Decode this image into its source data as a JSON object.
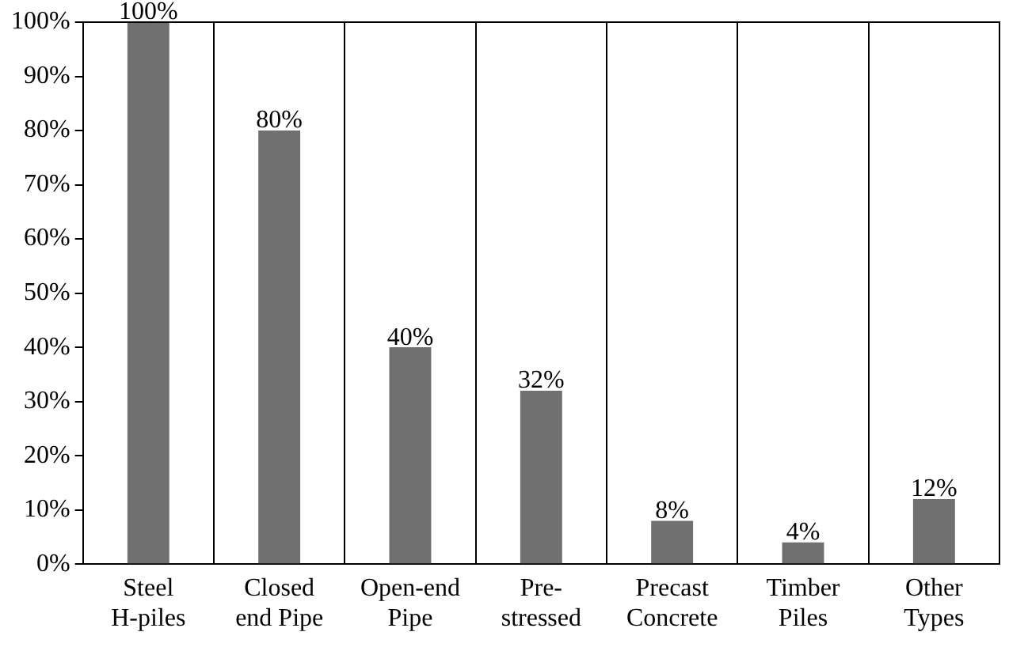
{
  "chart_data": {
    "type": "bar",
    "categories": [
      "Steel\nH-piles",
      "Closed\nend Pipe",
      "Open-end\nPipe",
      "Pre-\nstressed",
      "Precast\nConcrete",
      "Timber\nPiles",
      "Other\nTypes"
    ],
    "values": [
      100,
      80,
      40,
      32,
      8,
      4,
      12
    ],
    "value_labels": [
      "100%",
      "80%",
      "40%",
      "32%",
      "8%",
      "4%",
      "12%"
    ],
    "color": "#707070",
    "ylim": [
      0,
      100
    ],
    "yticks": [
      {
        "value": 0,
        "label": "0%"
      },
      {
        "value": 10,
        "label": "10%"
      },
      {
        "value": 20,
        "label": "20%"
      },
      {
        "value": 30,
        "label": "30%"
      },
      {
        "value": 40,
        "label": "40%"
      },
      {
        "value": 50,
        "label": "50%"
      },
      {
        "value": 60,
        "label": "60%"
      },
      {
        "value": 70,
        "label": "70%"
      },
      {
        "value": 80,
        "label": "80%"
      },
      {
        "value": 90,
        "label": "90%"
      },
      {
        "value": 100,
        "label": "100%"
      }
    ],
    "grid": "x",
    "legend": false
  }
}
